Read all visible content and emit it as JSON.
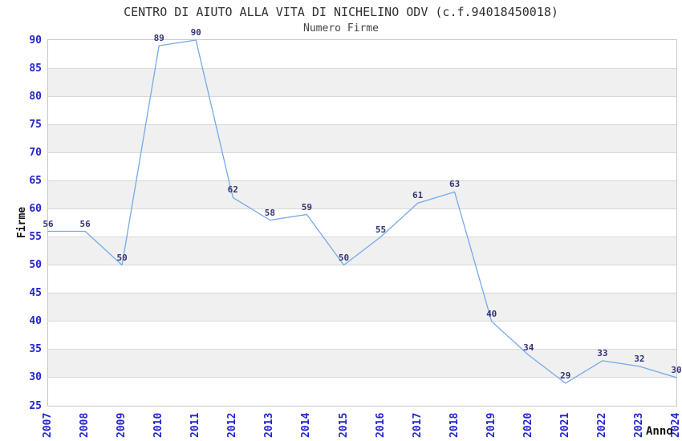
{
  "page": {
    "background": "#ffffff"
  },
  "chart_data": {
    "type": "line",
    "title": "CENTRO DI AIUTO ALLA VITA DI NICHELINO ODV (c.f.94018450018)",
    "subtitle": "Numero Firme",
    "xlabel": "Anno",
    "ylabel": "Firme",
    "categories": [
      "2007",
      "2008",
      "2009",
      "2010",
      "2011",
      "2012",
      "2013",
      "2014",
      "2015",
      "2016",
      "2017",
      "2018",
      "2019",
      "2020",
      "2021",
      "2022",
      "2023",
      "2024"
    ],
    "values": [
      56,
      56,
      50,
      89,
      90,
      62,
      58,
      59,
      50,
      55,
      61,
      63,
      40,
      34,
      29,
      33,
      32,
      30
    ],
    "ylim": [
      25,
      90
    ],
    "ytick_step": 5,
    "grid": "horizontal gridlines every 5 units",
    "banding": "alternating 5-unit horizontal shaded bands",
    "legend": "none",
    "markers": "none, data value labels above each point",
    "colors": {
      "line": "#74a9ea",
      "tick_label": "#2323d3",
      "data_label": "#343477",
      "axis_title": "#111111",
      "title": "#303030",
      "subtitle": "#454545",
      "band": "#f0f0f0",
      "gridline": "#d8d8d8",
      "plot_border": "#c8c8c8",
      "background": "#ffffff"
    }
  }
}
